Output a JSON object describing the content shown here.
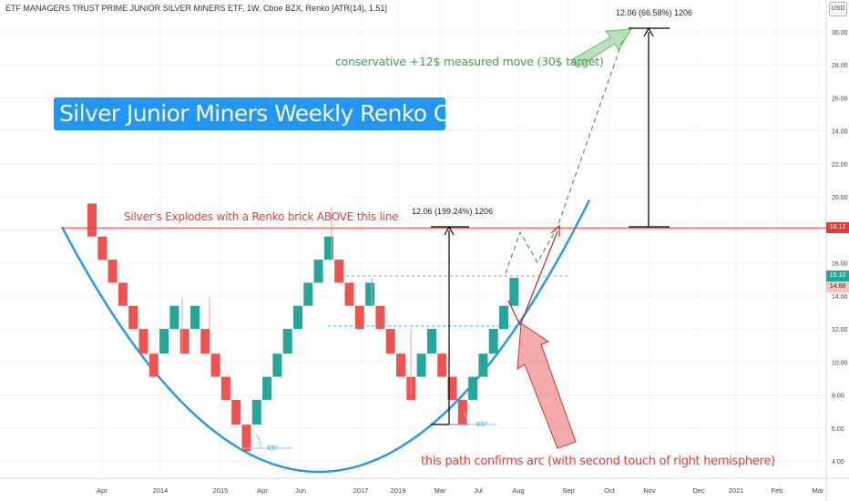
{
  "header": {
    "symbol_text": "ETF MANAGERS TRUST PRIME JUNIOR SILVER MINERS ETF, 1W, Cboe BZX, Renko [ATR(14), 1.51]",
    "currency": "USD"
  },
  "annotations": {
    "title": "Silver Junior Miners Weekly Renko Chart",
    "conservative_target": "conservative +12$ measured move (30$ target)",
    "breakout_line": "Silver's Explodes with a Renko brick ABOVE this line",
    "path_confirms": "this path confirms arc (with second touch of right hemisphere)",
    "measure_1": "12.06 (199.24%) 1206",
    "measure_2": "12.06 (66.58%) 1206",
    "angle_1": "65º",
    "angle_2": "65º"
  },
  "price_tags": {
    "line_price": "18.12",
    "last_price": "15.10",
    "prev_price": "14.68"
  },
  "colors": {
    "up": "#26a69a",
    "down": "#ef5350",
    "arc": "#2196f3",
    "target": "#3ca54a",
    "line": "#e53935"
  },
  "chart_data": {
    "type": "renko",
    "brick_size": 1.51,
    "x_labels": [
      "Apr",
      "2014",
      "2015",
      "Apr",
      "Jun",
      "2017",
      "2019",
      "Mar",
      "Jul",
      "Aug",
      "Sep",
      "Oct",
      "Nov",
      "Dec",
      "2021",
      "Feb",
      "Mar"
    ],
    "y_ticks": [
      "30.00",
      "28.00",
      "26.00",
      "24.00",
      "22.00",
      "20.00",
      "18.00",
      "16.00",
      "14.00",
      "12.00",
      "10.00",
      "8.00",
      "6.00",
      "4.00"
    ],
    "ylim": [
      3,
      33
    ],
    "resistance_level": 18.12,
    "target_level": 30.2,
    "bricks": [
      {
        "dir": "down",
        "low": 17.6,
        "high": 19.6
      },
      {
        "dir": "down",
        "low": 16.2,
        "high": 17.6
      },
      {
        "dir": "down",
        "low": 14.8,
        "high": 16.2
      },
      {
        "dir": "down",
        "low": 13.4,
        "high": 14.8
      },
      {
        "dir": "down",
        "low": 12.0,
        "high": 13.4
      },
      {
        "dir": "down",
        "low": 10.5,
        "high": 12.0
      },
      {
        "dir": "down",
        "low": 9.1,
        "high": 10.5
      },
      {
        "dir": "up",
        "low": 10.5,
        "high": 12.0
      },
      {
        "dir": "up",
        "low": 12.0,
        "high": 13.4
      },
      {
        "dir": "down",
        "low": 10.5,
        "high": 12.0
      },
      {
        "dir": "up",
        "low": 12.0,
        "high": 13.4
      },
      {
        "dir": "down",
        "low": 10.5,
        "high": 12.0
      },
      {
        "dir": "down",
        "low": 9.1,
        "high": 10.5
      },
      {
        "dir": "down",
        "low": 7.7,
        "high": 9.1
      },
      {
        "dir": "down",
        "low": 6.2,
        "high": 7.7
      },
      {
        "dir": "down",
        "low": 4.6,
        "high": 6.2
      },
      {
        "dir": "up",
        "low": 6.2,
        "high": 7.7
      },
      {
        "dir": "up",
        "low": 7.7,
        "high": 9.1
      },
      {
        "dir": "up",
        "low": 9.1,
        "high": 10.5
      },
      {
        "dir": "up",
        "low": 10.5,
        "high": 12.0
      },
      {
        "dir": "up",
        "low": 12.0,
        "high": 13.4
      },
      {
        "dir": "up",
        "low": 13.4,
        "high": 14.8
      },
      {
        "dir": "up",
        "low": 14.8,
        "high": 16.2
      },
      {
        "dir": "up",
        "low": 16.2,
        "high": 17.6
      },
      {
        "dir": "down",
        "low": 14.8,
        "high": 16.2
      },
      {
        "dir": "down",
        "low": 13.4,
        "high": 14.8
      },
      {
        "dir": "down",
        "low": 12.0,
        "high": 13.4
      },
      {
        "dir": "up",
        "low": 13.4,
        "high": 14.8
      },
      {
        "dir": "down",
        "low": 12.0,
        "high": 13.4
      },
      {
        "dir": "down",
        "low": 10.5,
        "high": 12.0
      },
      {
        "dir": "down",
        "low": 9.1,
        "high": 10.5
      },
      {
        "dir": "down",
        "low": 7.7,
        "high": 9.1
      },
      {
        "dir": "up",
        "low": 9.1,
        "high": 10.5
      },
      {
        "dir": "up",
        "low": 10.5,
        "high": 12.0
      },
      {
        "dir": "down",
        "low": 9.1,
        "high": 10.5
      },
      {
        "dir": "down",
        "low": 7.7,
        "high": 9.1
      },
      {
        "dir": "down",
        "low": 6.2,
        "high": 7.7
      },
      {
        "dir": "up",
        "low": 7.7,
        "high": 9.1
      },
      {
        "dir": "up",
        "low": 9.1,
        "high": 10.5
      },
      {
        "dir": "up",
        "low": 10.5,
        "high": 12.0
      },
      {
        "dir": "up",
        "low": 12.0,
        "high": 13.4
      },
      {
        "dir": "up",
        "low": 13.4,
        "high": 15.1
      }
    ]
  }
}
